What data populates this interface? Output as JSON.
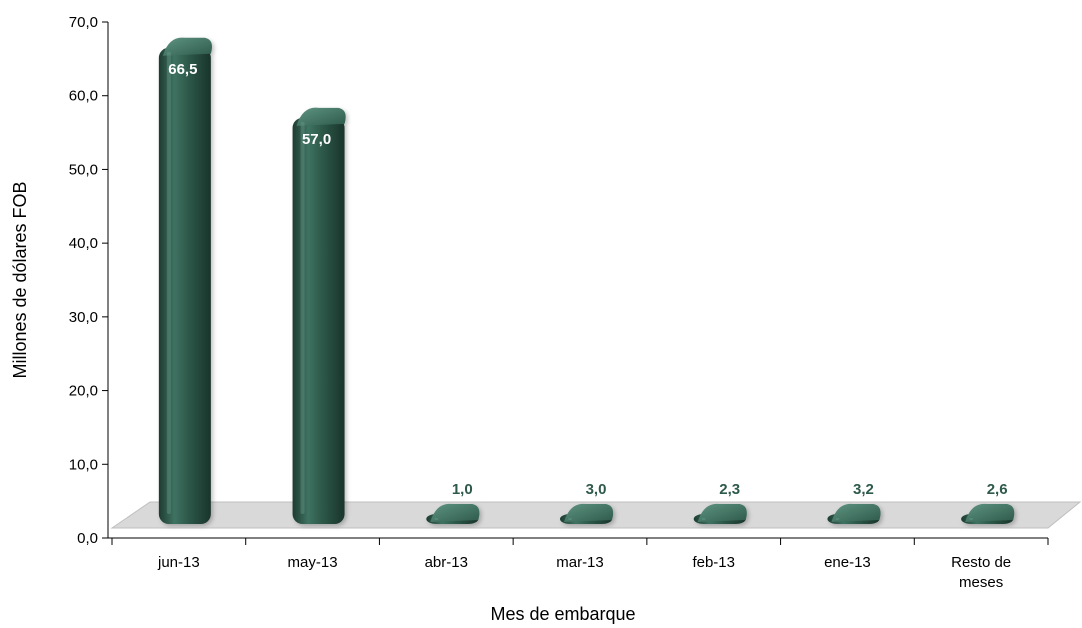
{
  "chart_data": {
    "type": "bar",
    "title": "",
    "xlabel": "Mes de embarque",
    "ylabel": "Millones de dólares FOB",
    "ylim": [
      0,
      70
    ],
    "y_ticks": [
      "0,0",
      "10,0",
      "20,0",
      "30,0",
      "40,0",
      "50,0",
      "60,0",
      "70,0"
    ],
    "categories": [
      "jun-13",
      "may-13",
      "abr-13",
      "mar-13",
      "feb-13",
      "ene-13",
      "Resto de meses"
    ],
    "values": [
      66.5,
      57.0,
      1.0,
      3.0,
      2.3,
      3.2,
      2.6
    ],
    "data_labels": [
      "66,5",
      "57,0",
      "1,0",
      "3,0",
      "2,3",
      "3,2",
      "2,6"
    ],
    "grid": false,
    "legend": "none",
    "colors": {
      "bar": "#2e5a4a",
      "bar_dark": "#1d3c31",
      "bar_light": "#4f8270",
      "floor": "#d9d9d9",
      "label_inside": "#ffffff",
      "label_outside": "#2e5a4a"
    }
  }
}
